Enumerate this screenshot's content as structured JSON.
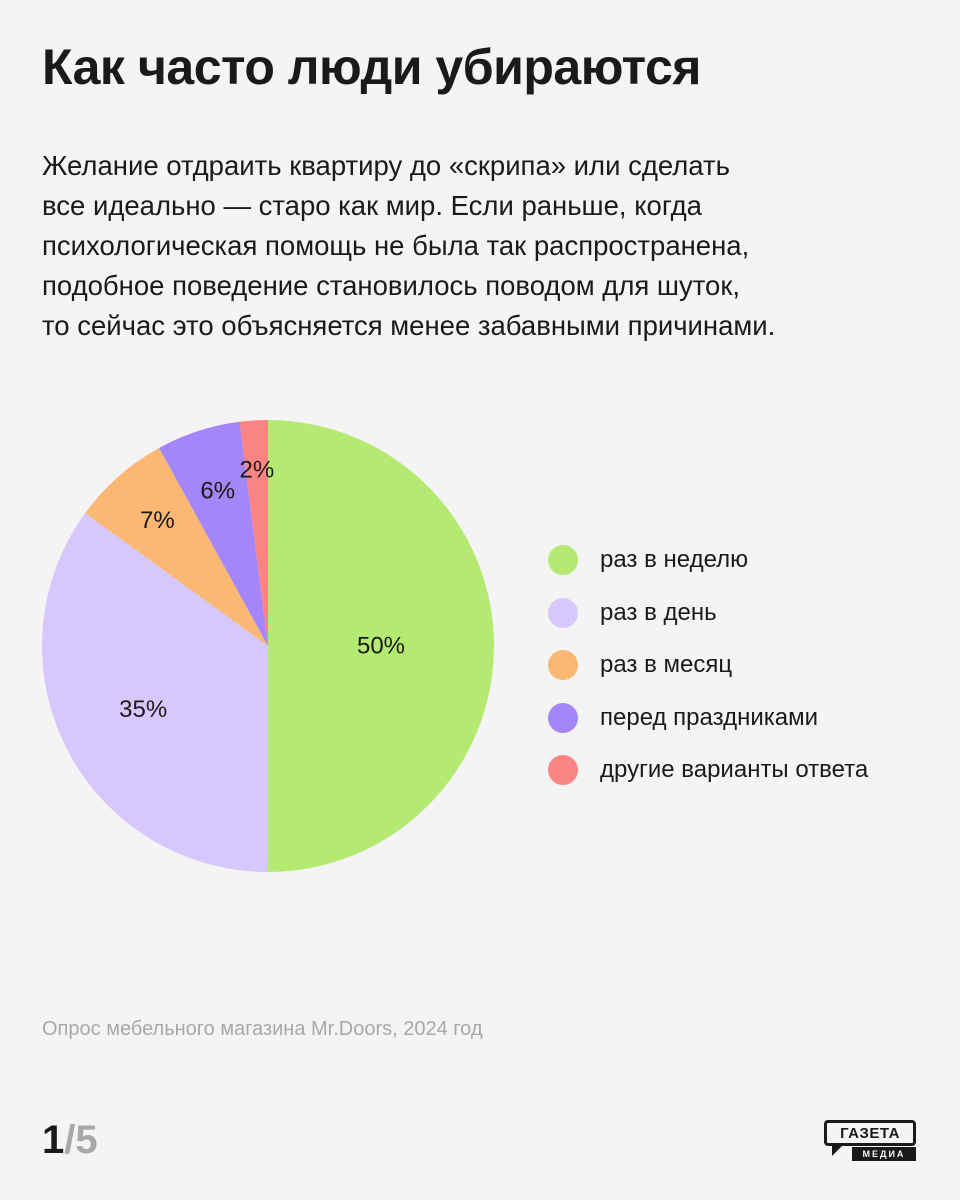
{
  "header": {
    "title": "Как часто люди убираются",
    "lead_lines": [
      "Желание отдраить квартиру до «скрипа» или сделать",
      "все идеально — старо как мир. Если раньше, когда",
      "психологическая помощь не была так распространена,",
      "подобное поведение становилось поводом для шуток,",
      "то сейчас это объясняется менее забавными причинами."
    ]
  },
  "chart_data": {
    "type": "pie",
    "title": "",
    "start": "12 o'clock",
    "direction": "clockwise",
    "slices": [
      {
        "label": "раз в неделю",
        "value": 50,
        "display": "50%",
        "color": "#b4ea72"
      },
      {
        "label": "раз в день",
        "value": 35,
        "display": "35%",
        "color": "#d6c8fd"
      },
      {
        "label": "раз в месяц",
        "value": 7,
        "display": "7%",
        "color": "#fbb774"
      },
      {
        "label": "перед праздниками",
        "value": 6,
        "display": "6%",
        "color": "#a585fa"
      },
      {
        "label": "другие варианты ответа",
        "value": 2,
        "display": "2%",
        "color": "#fb8585"
      }
    ],
    "legend_position": "right"
  },
  "footer": {
    "source": "Опрос мебельного магазина Mr.Doors, 2024 год",
    "page_current": "1",
    "page_separator": "/",
    "page_total": "5",
    "logo_top": "ГАЗЕТА",
    "logo_bottom": "МЕДИА"
  }
}
